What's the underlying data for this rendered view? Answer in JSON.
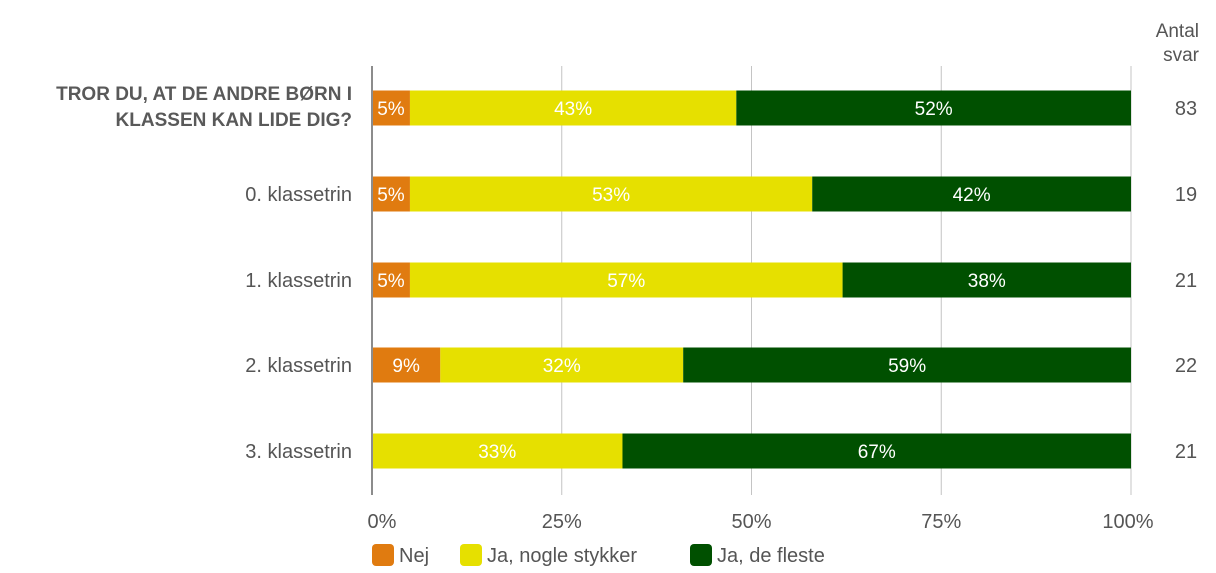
{
  "chart_data": {
    "type": "bar",
    "orientation": "horizontal",
    "stacked": true,
    "percent": true,
    "categories": [
      "TROR DU, AT DE ANDRE BØRN I KLASSEN KAN LIDE DIG?",
      "0. klassetrin",
      "1. klassetrin",
      "2. klassetrin",
      "3. klassetrin"
    ],
    "category_lines": [
      [
        "TROR DU, AT DE ANDRE BØRN I",
        "KLASSEN KAN LIDE DIG?"
      ],
      [
        "0. klassetrin"
      ],
      [
        "1. klassetrin"
      ],
      [
        "2. klassetrin"
      ],
      [
        "3. klassetrin"
      ]
    ],
    "category_bold": [
      true,
      false,
      false,
      false,
      false
    ],
    "series": [
      {
        "name": "Nej",
        "color": "#E07B10",
        "text_color": "#ffffff",
        "values": [
          5,
          5,
          5,
          9,
          0
        ],
        "labels": [
          "5%",
          "5%",
          "5%",
          "9%",
          ""
        ]
      },
      {
        "name": "Ja, nogle stykker",
        "color": "#E6E000",
        "text_color": "#ffffff",
        "values": [
          43,
          53,
          57,
          32,
          33
        ],
        "labels": [
          "43%",
          "53%",
          "57%",
          "32%",
          "33%"
        ]
      },
      {
        "name": "Ja, de fleste",
        "color": "#005000",
        "text_color": "#ffffff",
        "values": [
          52,
          42,
          38,
          59,
          67
        ],
        "labels": [
          "52%",
          "42%",
          "38%",
          "59%",
          "67%"
        ]
      }
    ],
    "counts_header": [
      "Antal",
      "svar"
    ],
    "counts": [
      "83",
      "19",
      "21",
      "22",
      "21"
    ],
    "xlim": [
      0,
      100
    ],
    "x_ticks": [
      0,
      25,
      50,
      75,
      100
    ],
    "x_tick_labels": [
      "0%",
      "25%",
      "50%",
      "75%",
      "100%"
    ],
    "grid": true,
    "legend_position": "bottom"
  }
}
